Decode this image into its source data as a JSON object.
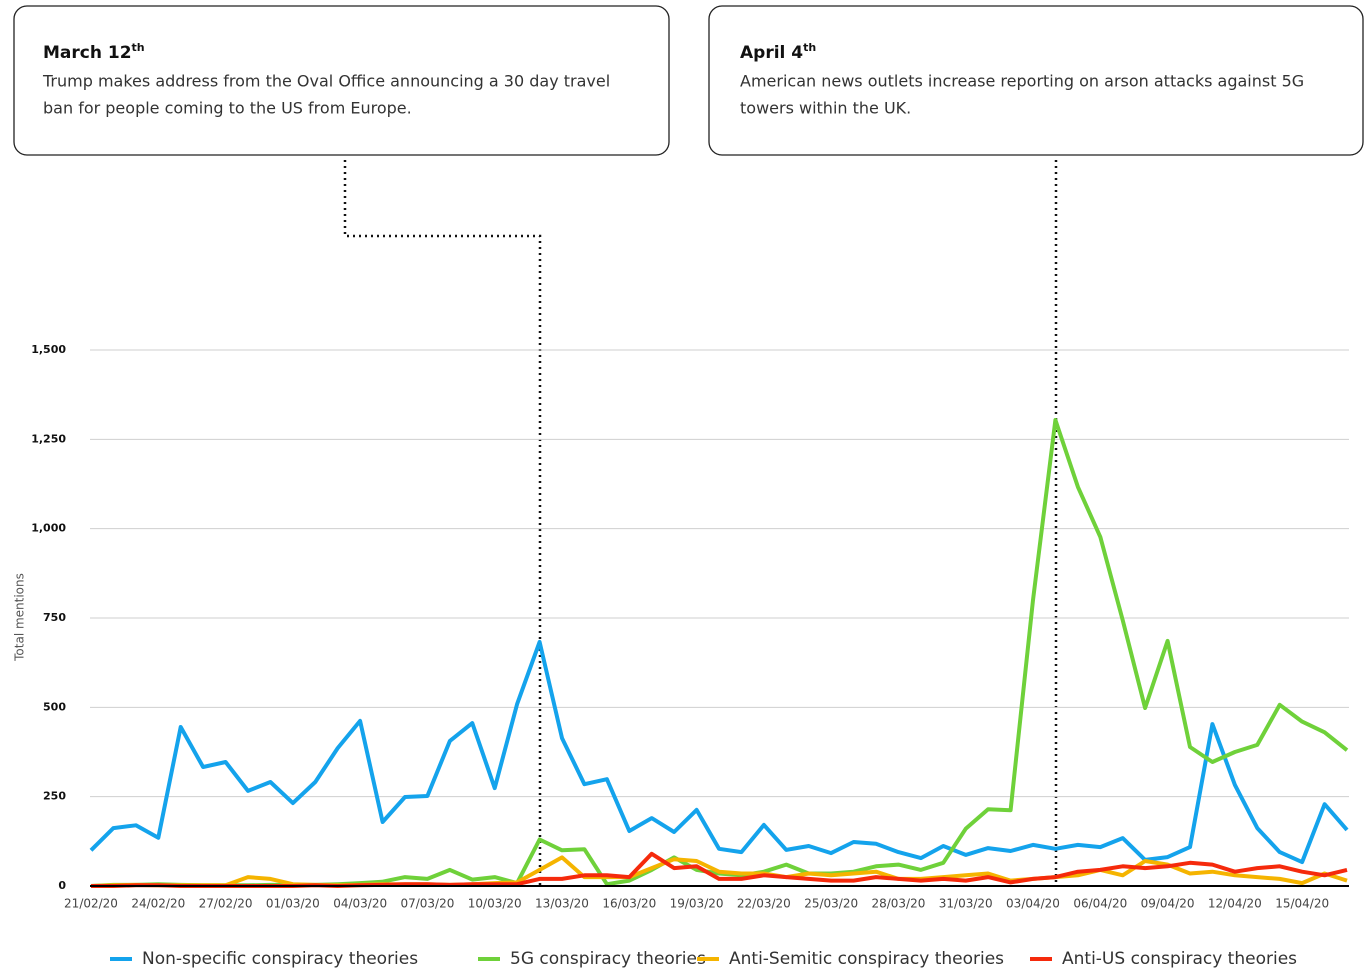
{
  "chart_data": {
    "type": "line",
    "y_label": "Total mentions",
    "annotations": [
      {
        "date": "March 12",
        "suffix": "th",
        "text": [
          "Trump makes address from the Oval Office announcing a 30 day travel",
          "ban for people coming to the US from Europe."
        ]
      },
      {
        "date": "April 4",
        "suffix": "th",
        "text": [
          "American news outlets increase reporting on arson attacks against 5G",
          "towers within the UK."
        ]
      }
    ],
    "categories": [
      "21/02/20",
      null,
      null,
      "24/02/20",
      null,
      null,
      "27/02/20",
      null,
      null,
      "01/03/20",
      null,
      null,
      "04/03/20",
      null,
      null,
      "07/03/20",
      null,
      null,
      "10/03/20",
      null,
      null,
      "13/03/20",
      null,
      null,
      "16/03/20",
      null,
      null,
      "19/03/20",
      null,
      null,
      "22/03/20",
      null,
      null,
      "25/03/20",
      null,
      null,
      "28/03/20",
      null,
      null,
      "31/03/20",
      null,
      null,
      "03/04/20",
      null,
      null,
      "06/04/20",
      null,
      null,
      "09/04/20",
      null,
      null,
      "12/04/20",
      null,
      null,
      "15/04/20",
      null,
      null
    ],
    "ylim": [
      0,
      1500
    ],
    "yticks": [
      0,
      250,
      500,
      750,
      {
        "value": 1000,
        "label": "1,000"
      },
      {
        "value": 1250,
        "label": "1,250"
      },
      {
        "value": 1500,
        "label": "1,500"
      }
    ],
    "grid": true,
    "series": [
      {
        "name": "Non-specific conspiracy theories",
        "color": "#14a3ec",
        "values": [
          100,
          162,
          170,
          135,
          445,
          333,
          347,
          266,
          291,
          232,
          291,
          386,
          462,
          179,
          249,
          252,
          406,
          456,
          274,
          509,
          683,
          414,
          285,
          299,
          154,
          190,
          151,
          213,
          104,
          95,
          171,
          101,
          112,
          92,
          123,
          118,
          95,
          78,
          112,
          87,
          106,
          98,
          115,
          104,
          115,
          109,
          134,
          73,
          81,
          109,
          453,
          283,
          162,
          95,
          67,
          229,
          157
        ]
      },
      {
        "name": "5G conspiracy theories",
        "color": "#6fd13a",
        "values": [
          0,
          3,
          3,
          5,
          3,
          2,
          2,
          2,
          3,
          3,
          3,
          5,
          8,
          12,
          25,
          20,
          45,
          18,
          25,
          8,
          130,
          100,
          103,
          5,
          15,
          45,
          80,
          45,
          35,
          30,
          40,
          60,
          35,
          35,
          40,
          55,
          60,
          45,
          65,
          160,
          215,
          212,
          800,
          1304,
          1117,
          977,
          744,
          498,
          686,
          389,
          347,
          375,
          395,
          507,
          460,
          430,
          380
        ]
      },
      {
        "name": "Anti-Semitic conspiracy theories",
        "color": "#f5b400",
        "values": [
          0,
          2,
          3,
          2,
          2,
          2,
          2,
          25,
          20,
          5,
          3,
          2,
          3,
          5,
          5,
          5,
          3,
          5,
          8,
          10,
          45,
          80,
          25,
          25,
          25,
          50,
          75,
          70,
          40,
          35,
          35,
          25,
          35,
          30,
          35,
          40,
          20,
          20,
          25,
          30,
          35,
          15,
          20,
          25,
          30,
          45,
          30,
          70,
          60,
          35,
          40,
          30,
          25,
          20,
          8,
          35,
          15
        ]
      },
      {
        "name": "Anti-US conspiracy theories",
        "color": "#f52a0c",
        "values": [
          0,
          0,
          2,
          2,
          0,
          0,
          0,
          0,
          0,
          0,
          2,
          0,
          2,
          3,
          5,
          5,
          3,
          5,
          5,
          5,
          20,
          20,
          30,
          30,
          25,
          90,
          50,
          55,
          20,
          20,
          30,
          25,
          20,
          15,
          15,
          25,
          20,
          15,
          20,
          15,
          25,
          10,
          20,
          25,
          40,
          45,
          55,
          50,
          55,
          65,
          60,
          40,
          50,
          55,
          40,
          30,
          45
        ]
      }
    ]
  }
}
